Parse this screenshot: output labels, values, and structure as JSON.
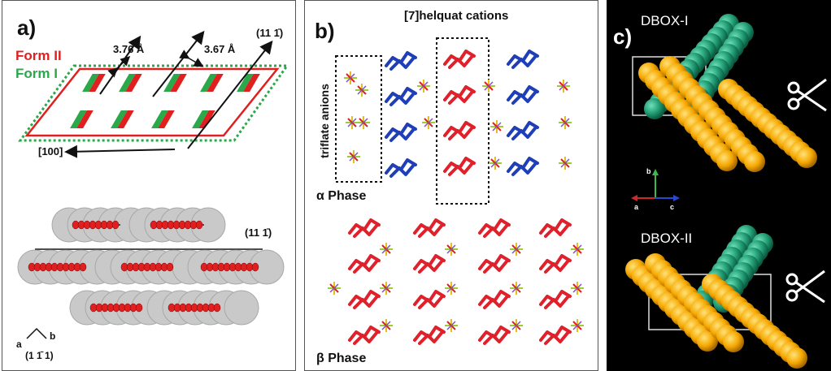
{
  "panel_a": {
    "letter": "a)",
    "form_ii": "Form II",
    "form_i": "Form I",
    "dist_1": "3.76 Å",
    "dist_2": "3.67 Å",
    "plane_top": "(11 1̄)",
    "plane_mid": "(11 1̄)",
    "direction": "[100]",
    "axis_a": "a",
    "axis_b": "b",
    "plane_bottom": "(1 1̄ 1)",
    "colors": {
      "form_ii": "#e02020",
      "form_i": "#2aa84a"
    }
  },
  "panel_b": {
    "letter": "b)",
    "cations": "[7]helquat cations",
    "anions": "triflate anions",
    "alpha": "α Phase",
    "beta": "β Phase",
    "colors": {
      "helquat_red": "#e0202a",
      "helquat_blue": "#1f3fb8"
    }
  },
  "panel_c": {
    "letter": "c)",
    "dbox1": "DBOX-I",
    "dbox2": "DBOX-II",
    "axis_b": "b",
    "axis_a": "a",
    "axis_c": "c",
    "colors": {
      "orange": "#f6a800",
      "teal": "#1f9a72"
    }
  }
}
